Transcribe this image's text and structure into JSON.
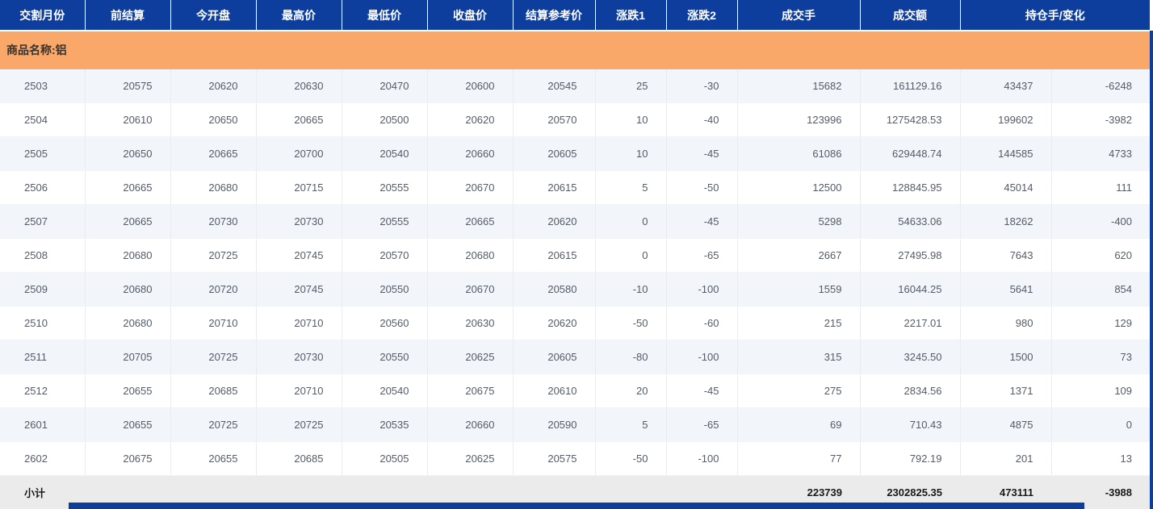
{
  "table": {
    "columns": [
      "交割月份",
      "前结算",
      "今开盘",
      "最高价",
      "最低价",
      "收盘价",
      "结算参考价",
      "涨跌1",
      "涨跌2",
      "成交手",
      "成交额",
      "持仓手/变化"
    ],
    "group_label": "商品名称:铝",
    "rows": [
      [
        "2503",
        "20575",
        "20620",
        "20630",
        "20470",
        "20600",
        "20545",
        "25",
        "-30",
        "15682",
        "161129.16",
        "43437",
        "-6248"
      ],
      [
        "2504",
        "20610",
        "20650",
        "20665",
        "20500",
        "20620",
        "20570",
        "10",
        "-40",
        "123996",
        "1275428.53",
        "199602",
        "-3982"
      ],
      [
        "2505",
        "20650",
        "20665",
        "20700",
        "20540",
        "20660",
        "20605",
        "10",
        "-45",
        "61086",
        "629448.74",
        "144585",
        "4733"
      ],
      [
        "2506",
        "20665",
        "20680",
        "20715",
        "20555",
        "20670",
        "20615",
        "5",
        "-50",
        "12500",
        "128845.95",
        "45014",
        "111"
      ],
      [
        "2507",
        "20665",
        "20730",
        "20730",
        "20555",
        "20665",
        "20620",
        "0",
        "-45",
        "5298",
        "54633.06",
        "18262",
        "-400"
      ],
      [
        "2508",
        "20680",
        "20725",
        "20745",
        "20570",
        "20680",
        "20615",
        "0",
        "-65",
        "2667",
        "27495.98",
        "7643",
        "620"
      ],
      [
        "2509",
        "20680",
        "20720",
        "20745",
        "20550",
        "20670",
        "20580",
        "-10",
        "-100",
        "1559",
        "16044.25",
        "5641",
        "854"
      ],
      [
        "2510",
        "20680",
        "20710",
        "20710",
        "20560",
        "20630",
        "20620",
        "-50",
        "-60",
        "215",
        "2217.01",
        "980",
        "129"
      ],
      [
        "2511",
        "20705",
        "20725",
        "20730",
        "20550",
        "20625",
        "20605",
        "-80",
        "-100",
        "315",
        "3245.50",
        "1500",
        "73"
      ],
      [
        "2512",
        "20655",
        "20685",
        "20710",
        "20540",
        "20675",
        "20610",
        "20",
        "-45",
        "275",
        "2834.56",
        "1371",
        "109"
      ],
      [
        "2601",
        "20655",
        "20725",
        "20725",
        "20535",
        "20660",
        "20590",
        "5",
        "-65",
        "69",
        "710.43",
        "4875",
        "0"
      ],
      [
        "2602",
        "20675",
        "20655",
        "20685",
        "20505",
        "20625",
        "20575",
        "-50",
        "-100",
        "77",
        "792.19",
        "201",
        "13"
      ]
    ],
    "subtotal": {
      "cells": [
        "小计",
        "",
        "",
        "",
        "",
        "",
        "",
        "",
        "",
        "223739",
        "2302825.35",
        "473111",
        "-3988"
      ]
    }
  },
  "colors": {
    "header_bg": "#0d3d9d",
    "header_text": "#ffffff",
    "group_row_bg": "#f9a86a",
    "group_row_text": "#333333",
    "row_alt_bg": "#f2f5fa",
    "row_bg": "#ffffff",
    "row_text": "#555c66",
    "subtotal_bg": "#ebebeb",
    "subtotal_text": "#1a1a1a",
    "scrollbar": "#0d3d9d"
  }
}
